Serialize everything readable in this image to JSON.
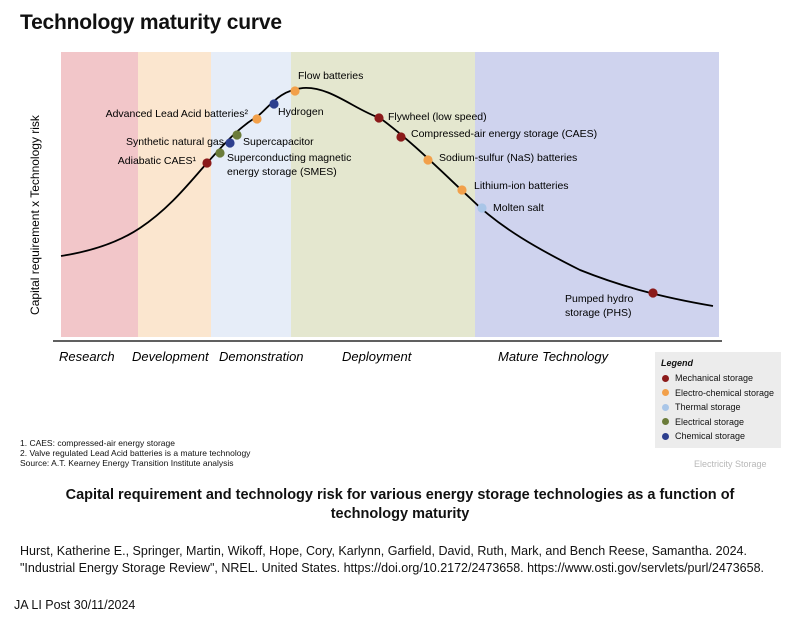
{
  "title": "Technology maturity curve",
  "y_axis_label": "Capital requirement x Technology risk",
  "stages": [
    {
      "id": "research",
      "label": "Research",
      "color": "#f2c6c9"
    },
    {
      "id": "development",
      "label": "Development",
      "color": "#fbe6cf"
    },
    {
      "id": "demonstration",
      "label": "Demonstration",
      "color": "#e6edf8"
    },
    {
      "id": "deployment",
      "label": "Deployment",
      "color": "#e4e7cf"
    },
    {
      "id": "mature",
      "label": "Mature Technology",
      "color": "#cfd3ee"
    }
  ],
  "technologies": [
    {
      "label": "Adiabatic CAES¹",
      "category": "mechanical"
    },
    {
      "label": "Superconducting magnetic",
      "label2": "energy storage (SMES)",
      "category": "electrical"
    },
    {
      "label": "Synthetic natural gas",
      "category": "chemical"
    },
    {
      "label": "Supercapacitor",
      "category": "electrical"
    },
    {
      "label": "Advanced Lead Acid batteries²",
      "category": "electrochemical"
    },
    {
      "label": "Hydrogen",
      "category": "chemical"
    },
    {
      "label": "Flow batteries",
      "category": "electrochemical"
    },
    {
      "label": "Flywheel (low speed)",
      "category": "mechanical"
    },
    {
      "label": "Compressed-air energy storage (CAES)",
      "category": "mechanical"
    },
    {
      "label": "Sodium-sulfur (NaS) batteries",
      "category": "electrochemical"
    },
    {
      "label": "Lithium-ion batteries",
      "category": "electrochemical"
    },
    {
      "label": "Molten salt",
      "category": "thermal"
    },
    {
      "label": "Pumped hydro",
      "label2": "storage (PHS)",
      "category": "mechanical"
    }
  ],
  "legend": {
    "title": "Legend",
    "items": [
      {
        "key": "mechanical",
        "label": "Mechanical storage",
        "color": "#8b1a1a"
      },
      {
        "key": "electrochemical",
        "label": "Electro-chemical storage",
        "color": "#f2a04a"
      },
      {
        "key": "thermal",
        "label": "Thermal storage",
        "color": "#a9c6e8"
      },
      {
        "key": "electrical",
        "label": "Electrical storage",
        "color": "#6b7c3a"
      },
      {
        "key": "chemical",
        "label": "Chemical storage",
        "color": "#2d3f8e"
      }
    ]
  },
  "footnotes": [
    "1.  CAES: compressed-air energy storage",
    "2.  Valve regulated Lead Acid batteries is a mature technology",
    "Source: A.T. Kearney Energy Transition Institute analysis"
  ],
  "watermark": "Electricity Storage",
  "caption": "Capital requirement and technology risk for various energy storage technologies as a function of technology maturity",
  "citation": "Hurst, Katherine E., Springer, Martin, Wikoff, Hope, Cory, Karlynn, Garfield, David, Ruth, Mark, and Bench Reese, Samantha. 2024. \"Industrial Energy Storage Review\", NREL. United States. https://doi.org/10.2172/2473658. https://www.osti.gov/servlets/purl/2473658.",
  "post_note": "JA LI Post 30/11/2024"
}
